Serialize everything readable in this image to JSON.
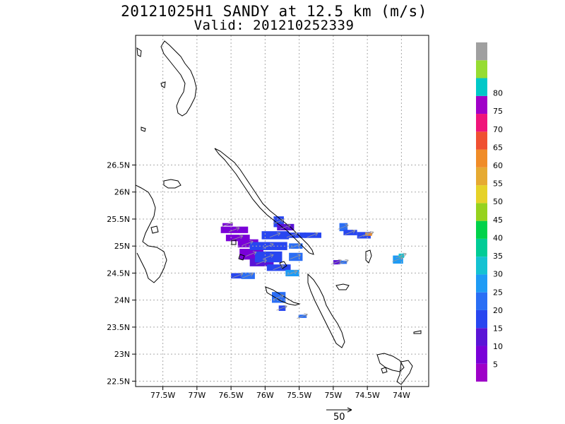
{
  "title": {
    "line1": "20121025H1 SANDY at 12.5 km (m/s)",
    "line2": "Valid: 201210252339"
  },
  "map": {
    "lon_range": [
      -77.9,
      -73.6
    ],
    "lat_range": [
      22.4,
      28.9
    ],
    "x_ticks": [
      {
        "value": -77.5,
        "label": "77.5W"
      },
      {
        "value": -77.0,
        "label": "77W"
      },
      {
        "value": -76.5,
        "label": "76.5W"
      },
      {
        "value": -76.0,
        "label": "76W"
      },
      {
        "value": -75.5,
        "label": "75.5W"
      },
      {
        "value": -75.0,
        "label": "75W"
      },
      {
        "value": -74.5,
        "label": "74.5W"
      },
      {
        "value": -74.0,
        "label": "74W"
      }
    ],
    "y_ticks": [
      {
        "value": 26.5,
        "label": "26.5N"
      },
      {
        "value": 26.0,
        "label": "26N"
      },
      {
        "value": 25.5,
        "label": "25.5N"
      },
      {
        "value": 25.0,
        "label": "25N"
      },
      {
        "value": 24.5,
        "label": "24.5N"
      },
      {
        "value": 24.0,
        "label": "24N"
      },
      {
        "value": 23.5,
        "label": "23.5N"
      },
      {
        "value": 23.0,
        "label": "23N"
      },
      {
        "value": 22.5,
        "label": "22.5N"
      }
    ],
    "grid": true,
    "coastline_color": "#000000",
    "wind_cells": [
      {
        "lon": -76.55,
        "lat": 25.4,
        "w": 0.15,
        "h": 0.05,
        "speed": 5
      },
      {
        "lon": -76.45,
        "lat": 25.3,
        "w": 0.4,
        "h": 0.12,
        "speed": 5
      },
      {
        "lon": -76.4,
        "lat": 25.15,
        "w": 0.35,
        "h": 0.12,
        "speed": 8
      },
      {
        "lon": -76.25,
        "lat": 25.05,
        "w": 0.3,
        "h": 0.15,
        "speed": 5
      },
      {
        "lon": -76.2,
        "lat": 24.85,
        "w": 0.35,
        "h": 0.2,
        "speed": 8
      },
      {
        "lon": -76.05,
        "lat": 24.7,
        "w": 0.35,
        "h": 0.15,
        "speed": 10
      },
      {
        "lon": -75.8,
        "lat": 25.45,
        "w": 0.15,
        "h": 0.2,
        "speed": 15
      },
      {
        "lon": -75.7,
        "lat": 25.35,
        "w": 0.25,
        "h": 0.12,
        "speed": 14
      },
      {
        "lon": -75.85,
        "lat": 25.2,
        "w": 0.4,
        "h": 0.15,
        "speed": 15
      },
      {
        "lon": -75.6,
        "lat": 25.2,
        "w": 0.4,
        "h": 0.1,
        "speed": 18
      },
      {
        "lon": -75.3,
        "lat": 25.2,
        "w": 0.25,
        "h": 0.1,
        "speed": 15
      },
      {
        "lon": -75.95,
        "lat": 25.0,
        "w": 0.55,
        "h": 0.15,
        "speed": 15
      },
      {
        "lon": -75.55,
        "lat": 25.0,
        "w": 0.2,
        "h": 0.1,
        "speed": 20
      },
      {
        "lon": -75.95,
        "lat": 24.8,
        "w": 0.4,
        "h": 0.2,
        "speed": 15
      },
      {
        "lon": -75.55,
        "lat": 24.8,
        "w": 0.2,
        "h": 0.15,
        "speed": 22
      },
      {
        "lon": -75.8,
        "lat": 24.6,
        "w": 0.35,
        "h": 0.12,
        "speed": 15
      },
      {
        "lon": -75.6,
        "lat": 24.5,
        "w": 0.2,
        "h": 0.12,
        "speed": 25
      },
      {
        "lon": -76.4,
        "lat": 24.45,
        "w": 0.2,
        "h": 0.1,
        "speed": 15
      },
      {
        "lon": -76.25,
        "lat": 24.45,
        "w": 0.2,
        "h": 0.12,
        "speed": 22
      },
      {
        "lon": -75.8,
        "lat": 24.05,
        "w": 0.2,
        "h": 0.2,
        "speed": 20
      },
      {
        "lon": -75.75,
        "lat": 23.85,
        "w": 0.1,
        "h": 0.1,
        "speed": 18
      },
      {
        "lon": -75.45,
        "lat": 23.7,
        "w": 0.12,
        "h": 0.06,
        "speed": 20
      },
      {
        "lon": -74.85,
        "lat": 25.35,
        "w": 0.12,
        "h": 0.15,
        "speed": 20
      },
      {
        "lon": -74.75,
        "lat": 25.25,
        "w": 0.2,
        "h": 0.1,
        "speed": 15
      },
      {
        "lon": -74.55,
        "lat": 25.2,
        "w": 0.2,
        "h": 0.12,
        "speed": 15
      },
      {
        "lon": -74.48,
        "lat": 25.22,
        "w": 0.1,
        "h": 0.06,
        "speed": 60
      },
      {
        "lon": -74.95,
        "lat": 24.7,
        "w": 0.1,
        "h": 0.08,
        "speed": 10
      },
      {
        "lon": -74.85,
        "lat": 24.7,
        "w": 0.1,
        "h": 0.06,
        "speed": 20
      },
      {
        "lon": -74.05,
        "lat": 24.75,
        "w": 0.15,
        "h": 0.15,
        "speed": 25
      },
      {
        "lon": -74.0,
        "lat": 24.82,
        "w": 0.08,
        "h": 0.08,
        "speed": 30
      }
    ]
  },
  "colorbar": {
    "colors": [
      "#9e00c8",
      "#7a00d8",
      "#5a14d6",
      "#2846f0",
      "#2a6ef5",
      "#1e9bf5",
      "#14c2d2",
      "#00cc96",
      "#00d24a",
      "#96d21e",
      "#e6d228",
      "#e6aa32",
      "#f08c28",
      "#f05032",
      "#f0147a",
      "#a000c8",
      "#00c8c8",
      "#96dc32",
      "#a0a0a0"
    ],
    "labels": [
      "5",
      "10",
      "15",
      "20",
      "25",
      "30",
      "35",
      "40",
      "45",
      "50",
      "55",
      "60",
      "65",
      "70",
      "75",
      "80"
    ]
  },
  "reference_vector": {
    "label": "50"
  }
}
